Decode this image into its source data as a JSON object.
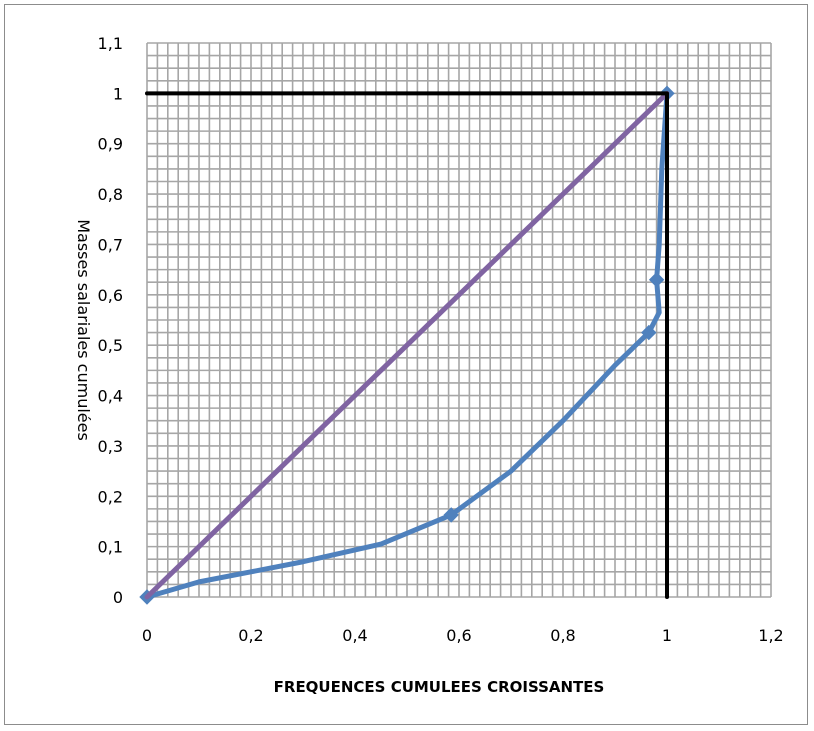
{
  "chart_data": {
    "type": "line",
    "xlabel": "FREQUENCES CUMULEES CROISSANTES",
    "ylabel": "Masses salariales cumulées",
    "xlim": [
      0,
      1.2
    ],
    "ylim": [
      0,
      1.1
    ],
    "x_tick_labels": [
      "0",
      "0,2",
      "0,4",
      "0,6",
      "0,8",
      "1",
      "1,2"
    ],
    "y_tick_labels": [
      "0",
      "0,1",
      "0,2",
      "0,3",
      "0,4",
      "0,5",
      "0,6",
      "0,7",
      "0,8",
      "0,9",
      "1",
      "1,1"
    ],
    "x_ticks": [
      0,
      0.2,
      0.4,
      0.6,
      0.8,
      1.0,
      1.2
    ],
    "y_ticks": [
      0,
      0.1,
      0.2,
      0.3,
      0.4,
      0.5,
      0.6,
      0.7,
      0.8,
      0.9,
      1.0,
      1.1
    ],
    "grid": true,
    "series": [
      {
        "role": "lorenz-curve",
        "color": "#4f81bd",
        "points": [
          [
            0,
            0
          ],
          [
            0.1,
            0.03
          ],
          [
            0.2,
            0.05
          ],
          [
            0.3,
            0.07
          ],
          [
            0.45,
            0.105
          ],
          [
            0.585,
            0.163
          ],
          [
            0.7,
            0.25
          ],
          [
            0.8,
            0.35
          ],
          [
            0.9,
            0.46
          ],
          [
            0.965,
            0.525
          ],
          [
            0.985,
            0.565
          ],
          [
            0.98,
            0.63
          ],
          [
            0.985,
            0.7
          ],
          [
            0.99,
            0.85
          ],
          [
            1.0,
            1.0
          ]
        ],
        "markers": [
          [
            0,
            0
          ],
          [
            0.585,
            0.163
          ],
          [
            0.965,
            0.525
          ],
          [
            0.98,
            0.63
          ],
          [
            1.0,
            1.0
          ]
        ]
      },
      {
        "role": "equality-line",
        "color": "#8064a2",
        "points": [
          [
            0,
            0
          ],
          [
            1.0,
            1.0
          ]
        ]
      },
      {
        "role": "reference-box",
        "color": "#000000",
        "points": [
          [
            0,
            1.0
          ],
          [
            1.0,
            1.0
          ],
          [
            1.0,
            0
          ]
        ]
      }
    ]
  }
}
